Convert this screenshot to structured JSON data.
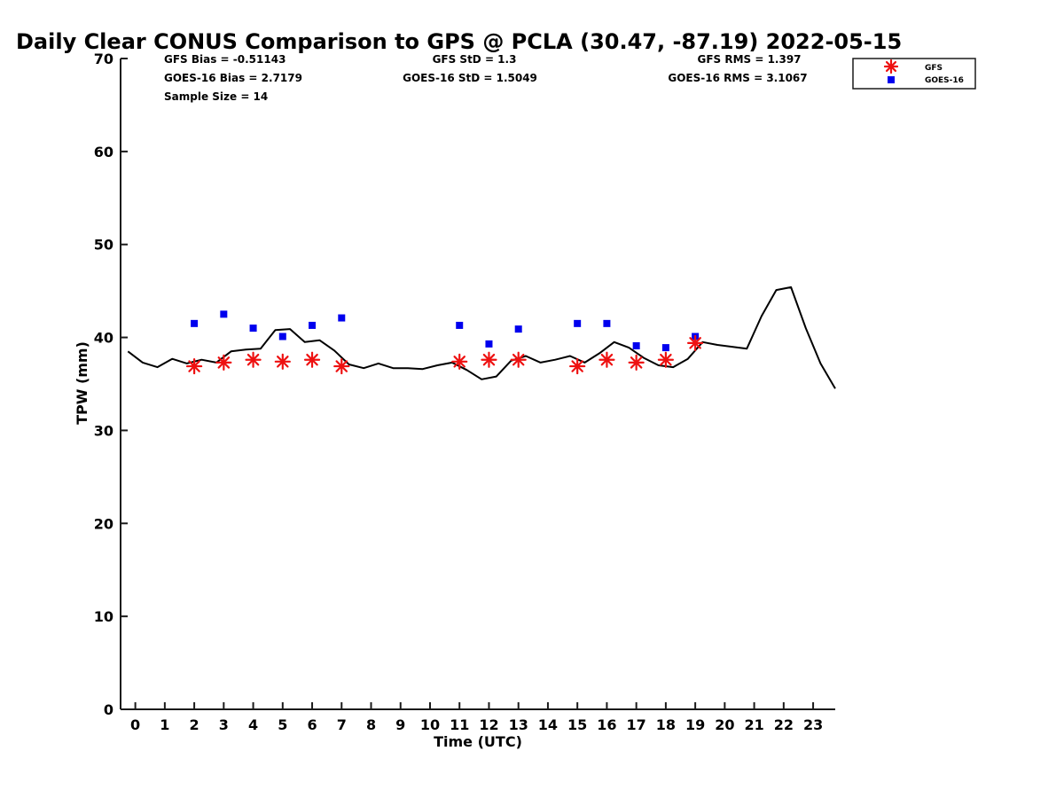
{
  "chart_data": {
    "type": "scatter",
    "title": "Daily Clear CONUS Comparison to GPS @ PCLA (30.47, -87.19) 2022-05-15",
    "xlabel": "Time (UTC)",
    "ylabel": "TPW (mm)",
    "xlim": [
      -0.5,
      23.75
    ],
    "ylim": [
      0,
      70
    ],
    "xticks": [
      "0",
      "1",
      "2",
      "3",
      "4",
      "5",
      "6",
      "7",
      "8",
      "9",
      "10",
      "11",
      "12",
      "13",
      "14",
      "15",
      "16",
      "17",
      "18",
      "19",
      "20",
      "21",
      "22",
      "23"
    ],
    "yticks": [
      "0",
      "10",
      "20",
      "30",
      "40",
      "50",
      "60",
      "70"
    ],
    "stats": [
      {
        "id": "gfs-bias",
        "text": "GFS Bias = -0.51143"
      },
      {
        "id": "gfs-std",
        "text": "GFS StD = 1.3"
      },
      {
        "id": "gfs-rms",
        "text": "GFS RMS = 1.397"
      },
      {
        "id": "goes-bias",
        "text": "GOES-16 Bias = 2.7179"
      },
      {
        "id": "goes-std",
        "text": "GOES-16 StD = 1.5049"
      },
      {
        "id": "goes-rms",
        "text": "GOES-16 RMS = 3.1067"
      },
      {
        "id": "sample-size",
        "text": "Sample Size = 14"
      }
    ],
    "legend": {
      "position": "top-right",
      "entries": [
        "GFS",
        "GOES-16"
      ]
    },
    "series": [
      {
        "name": "GPS",
        "style": "line",
        "color": "#000000",
        "x": [
          -0.25,
          0.25,
          0.75,
          1.25,
          1.75,
          2.25,
          2.75,
          3.25,
          3.75,
          4.25,
          4.75,
          5.25,
          5.75,
          6.25,
          6.75,
          7.25,
          7.75,
          8.25,
          8.75,
          9.25,
          9.75,
          10.25,
          10.75,
          11.25,
          11.75,
          12.25,
          12.75,
          13.25,
          13.75,
          14.25,
          14.75,
          15.25,
          15.75,
          16.25,
          16.75,
          17.25,
          17.75,
          18.25,
          18.75,
          19.25,
          19.75,
          20.25,
          20.75,
          21.25,
          21.75,
          22.25,
          22.75,
          23.25,
          23.75
        ],
        "y": [
          38.5,
          37.3,
          36.8,
          37.7,
          37.2,
          37.6,
          37.3,
          38.5,
          38.7,
          38.8,
          40.8,
          40.9,
          39.5,
          39.7,
          38.6,
          37.1,
          36.7,
          37.2,
          36.7,
          36.7,
          36.6,
          37.0,
          37.3,
          36.5,
          35.5,
          35.8,
          37.5,
          38.0,
          37.3,
          37.6,
          38.0,
          37.3,
          38.3,
          39.5,
          38.9,
          37.8,
          37.0,
          36.8,
          37.7,
          39.5,
          39.2,
          39.0,
          38.8,
          42.3,
          45.1,
          45.4,
          41.0,
          37.2,
          34.5
        ]
      },
      {
        "name": "GFS",
        "style": "marker-asterisk",
        "color": "#ee1111",
        "x": [
          2,
          3,
          4,
          5,
          6,
          7,
          11,
          12,
          13,
          15,
          16,
          17,
          18,
          19
        ],
        "y": [
          36.9,
          37.3,
          37.6,
          37.4,
          37.6,
          36.9,
          37.4,
          37.6,
          37.6,
          36.9,
          37.6,
          37.3,
          37.6,
          39.4
        ]
      },
      {
        "name": "GOES-16",
        "style": "marker-square",
        "color": "#0000ee",
        "x": [
          2,
          3,
          4,
          5,
          6,
          7,
          11,
          12,
          13,
          15,
          16,
          17,
          18,
          19
        ],
        "y": [
          41.5,
          42.5,
          41.0,
          40.1,
          41.3,
          42.1,
          41.3,
          39.3,
          40.9,
          41.5,
          41.5,
          39.1,
          38.9,
          40.1
        ]
      }
    ]
  }
}
